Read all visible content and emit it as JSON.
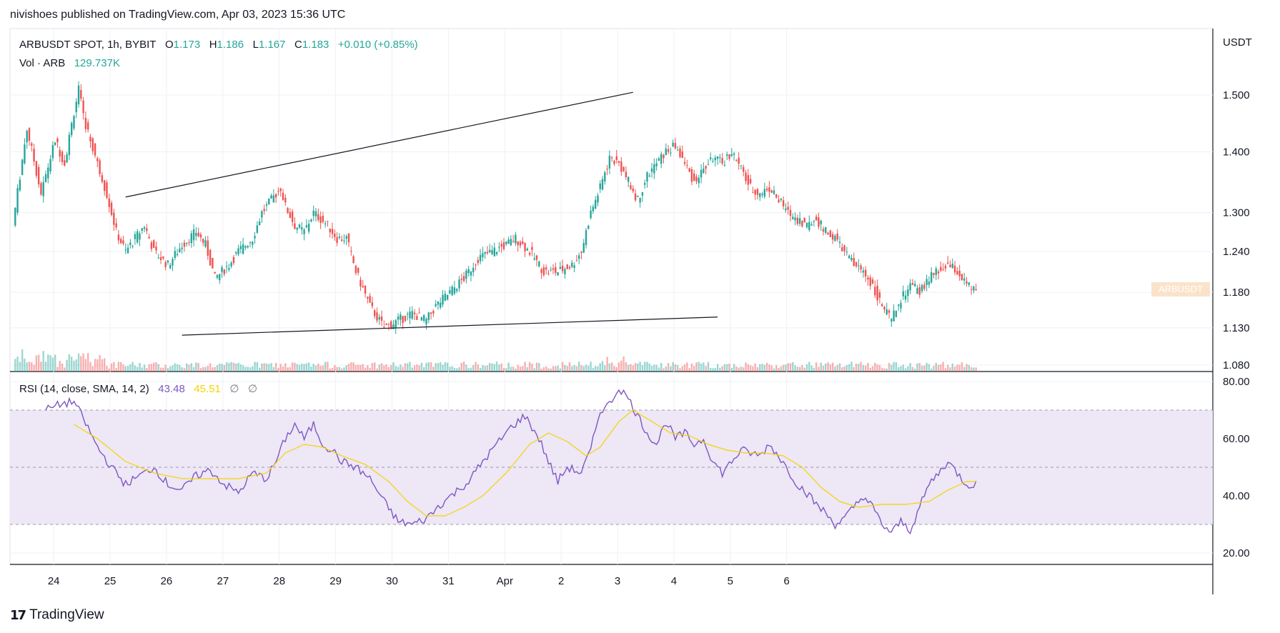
{
  "publisher": "nivishoes published on TradingView.com, Apr 03, 2023 15:36 UTC",
  "brand": {
    "logo_icon": "tradingview-logo-icon",
    "name": "TradingView"
  },
  "legend": {
    "symbol": "ARBUSDT SPOT, 1h, BYBIT",
    "o_label": "O",
    "o_value": "1.173",
    "h_label": "H",
    "h_value": "1.186",
    "l_label": "L",
    "l_value": "1.167",
    "c_label": "C",
    "c_value": "1.183",
    "change": "+0.010 (+0.85%)",
    "vol_label": "Vol · ARB",
    "vol_value": "129.737K"
  },
  "rsi_legend": {
    "label": "RSI (14, close, SMA, 14, 2)",
    "rsi_value": "43.48",
    "ma_value": "45.51",
    "n1": "∅",
    "n2": "∅"
  },
  "price_tag": "ARBUSDT",
  "colors": {
    "up": "#26a69a",
    "down": "#ef5350",
    "rsi": "#7e57c2",
    "rsi_ma": "#f5d400",
    "band": "#ede7f6",
    "grid": "#eef0f4",
    "trend": "#131722"
  },
  "chart_data": [
    {
      "type": "candlestick",
      "title": "",
      "currency_label": "USDT",
      "y_scale": "log",
      "y_ticks": [
        "1.500",
        "1.400",
        "1.300",
        "1.240",
        "1.180",
        "1.130",
        "1.080"
      ],
      "x_ticks": [
        "24",
        "25",
        "26",
        "27",
        "28",
        "29",
        "30",
        "31",
        "Apr",
        "2",
        "3",
        "4",
        "5",
        "6"
      ],
      "anchors": [
        [
          0,
          1.28
        ],
        [
          6,
          1.44
        ],
        [
          12,
          1.33
        ],
        [
          18,
          1.42
        ],
        [
          22,
          1.38
        ],
        [
          26,
          1.47
        ],
        [
          28,
          1.51
        ],
        [
          30,
          1.46
        ],
        [
          33,
          1.42
        ],
        [
          36,
          1.38
        ],
        [
          40,
          1.33
        ],
        [
          44,
          1.27
        ],
        [
          48,
          1.24
        ],
        [
          52,
          1.26
        ],
        [
          56,
          1.28
        ],
        [
          60,
          1.24
        ],
        [
          66,
          1.22
        ],
        [
          72,
          1.25
        ],
        [
          78,
          1.27
        ],
        [
          82,
          1.25
        ],
        [
          86,
          1.2
        ],
        [
          92,
          1.22
        ],
        [
          96,
          1.24
        ],
        [
          102,
          1.26
        ],
        [
          106,
          1.3
        ],
        [
          110,
          1.32
        ],
        [
          114,
          1.34
        ],
        [
          116,
          1.31
        ],
        [
          120,
          1.28
        ],
        [
          124,
          1.27
        ],
        [
          128,
          1.3
        ],
        [
          134,
          1.28
        ],
        [
          138,
          1.26
        ],
        [
          142,
          1.26
        ],
        [
          146,
          1.21
        ],
        [
          152,
          1.16
        ],
        [
          158,
          1.13
        ],
        [
          164,
          1.14
        ],
        [
          170,
          1.15
        ],
        [
          176,
          1.14
        ],
        [
          180,
          1.16
        ],
        [
          186,
          1.18
        ],
        [
          192,
          1.2
        ],
        [
          198,
          1.23
        ],
        [
          204,
          1.24
        ],
        [
          210,
          1.25
        ],
        [
          214,
          1.26
        ],
        [
          220,
          1.24
        ],
        [
          226,
          1.21
        ],
        [
          232,
          1.21
        ],
        [
          238,
          1.22
        ],
        [
          242,
          1.24
        ],
        [
          246,
          1.3
        ],
        [
          250,
          1.34
        ],
        [
          254,
          1.39
        ],
        [
          258,
          1.38
        ],
        [
          262,
          1.35
        ],
        [
          266,
          1.32
        ],
        [
          270,
          1.36
        ],
        [
          274,
          1.38
        ],
        [
          278,
          1.4
        ],
        [
          282,
          1.41
        ],
        [
          286,
          1.38
        ],
        [
          290,
          1.35
        ],
        [
          294,
          1.37
        ],
        [
          298,
          1.39
        ],
        [
          302,
          1.38
        ],
        [
          306,
          1.4
        ],
        [
          310,
          1.37
        ],
        [
          314,
          1.34
        ],
        [
          318,
          1.33
        ],
        [
          322,
          1.34
        ],
        [
          326,
          1.32
        ],
        [
          330,
          1.3
        ],
        [
          334,
          1.29
        ],
        [
          338,
          1.28
        ],
        [
          342,
          1.29
        ],
        [
          346,
          1.27
        ],
        [
          350,
          1.26
        ],
        [
          354,
          1.24
        ],
        [
          358,
          1.22
        ],
        [
          362,
          1.21
        ],
        [
          366,
          1.19
        ],
        [
          370,
          1.16
        ],
        [
          374,
          1.14
        ],
        [
          378,
          1.17
        ],
        [
          382,
          1.19
        ],
        [
          386,
          1.18
        ],
        [
          390,
          1.2
        ],
        [
          394,
          1.21
        ],
        [
          398,
          1.22
        ],
        [
          402,
          1.21
        ],
        [
          406,
          1.19
        ],
        [
          410,
          1.18
        ]
      ],
      "candle_count": 410,
      "last": {
        "open": 1.173,
        "high": 1.186,
        "low": 1.167,
        "close": 1.183
      },
      "volume_last": "129.737K",
      "trendlines": [
        {
          "from": [
            "25 18:00",
            1.325
          ],
          "to": [
            "3 18:00",
            1.505
          ]
        },
        {
          "from": [
            "26 18:00",
            1.12
          ],
          "to": [
            "5 06:00",
            1.145
          ]
        }
      ]
    },
    {
      "type": "line",
      "title": "",
      "y_ticks": [
        "80.00",
        "60.00",
        "40.00",
        "20.00"
      ],
      "ylim": [
        17,
        82
      ],
      "bands": [
        30,
        50,
        70
      ],
      "series": [
        {
          "anchors": [
            [
              14,
              70
            ],
            [
              20,
              72
            ],
            [
              26,
              73
            ],
            [
              30,
              67
            ],
            [
              36,
              57
            ],
            [
              42,
              50
            ],
            [
              48,
              44
            ],
            [
              54,
              47
            ],
            [
              60,
              50
            ],
            [
              66,
              44
            ],
            [
              72,
              42
            ],
            [
              78,
              47
            ],
            [
              84,
              49
            ],
            [
              90,
              44
            ],
            [
              96,
              41
            ],
            [
              102,
              48
            ],
            [
              108,
              46
            ],
            [
              112,
              52
            ],
            [
              116,
              60
            ],
            [
              120,
              65
            ],
            [
              124,
              60
            ],
            [
              128,
              65
            ],
            [
              132,
              58
            ],
            [
              136,
              56
            ],
            [
              140,
              52
            ],
            [
              146,
              50
            ],
            [
              152,
              46
            ],
            [
              158,
              38
            ],
            [
              164,
              31
            ],
            [
              170,
              30
            ],
            [
              176,
              32
            ],
            [
              182,
              37
            ],
            [
              188,
              41
            ],
            [
              194,
              45
            ],
            [
              200,
              52
            ],
            [
              206,
              58
            ],
            [
              212,
              64
            ],
            [
              218,
              68
            ],
            [
              224,
              60
            ],
            [
              228,
              52
            ],
            [
              232,
              45
            ],
            [
              236,
              50
            ],
            [
              242,
              48
            ],
            [
              246,
              56
            ],
            [
              250,
              70
            ],
            [
              254,
              72
            ],
            [
              258,
              78
            ],
            [
              262,
              74
            ],
            [
              266,
              68
            ],
            [
              270,
              62
            ],
            [
              274,
              58
            ],
            [
              278,
              66
            ],
            [
              282,
              60
            ],
            [
              286,
              62
            ],
            [
              290,
              58
            ],
            [
              294,
              60
            ],
            [
              298,
              52
            ],
            [
              302,
              48
            ],
            [
              306,
              52
            ],
            [
              310,
              56
            ],
            [
              314,
              55
            ],
            [
              318,
              54
            ],
            [
              322,
              58
            ],
            [
              326,
              54
            ],
            [
              330,
              49
            ],
            [
              334,
              44
            ],
            [
              338,
              41
            ],
            [
              342,
              37
            ],
            [
              346,
              34
            ],
            [
              350,
              30
            ],
            [
              354,
              32
            ],
            [
              358,
              36
            ],
            [
              362,
              40
            ],
            [
              366,
              36
            ],
            [
              370,
              30
            ],
            [
              374,
              27
            ],
            [
              378,
              31
            ],
            [
              382,
              28
            ],
            [
              386,
              36
            ],
            [
              390,
              44
            ],
            [
              394,
              48
            ],
            [
              398,
              52
            ],
            [
              402,
              48
            ],
            [
              406,
              44
            ],
            [
              410,
              44
            ]
          ]
        },
        {
          "anchors": [
            [
              26,
              65
            ],
            [
              36,
              60
            ],
            [
              48,
              52
            ],
            [
              60,
              48
            ],
            [
              72,
              46
            ],
            [
              84,
              46
            ],
            [
              96,
              46
            ],
            [
              108,
              48
            ],
            [
              116,
              55
            ],
            [
              124,
              58
            ],
            [
              132,
              57
            ],
            [
              140,
              54
            ],
            [
              150,
              51
            ],
            [
              160,
              45
            ],
            [
              168,
              38
            ],
            [
              176,
              33
            ],
            [
              184,
              33
            ],
            [
              192,
              36
            ],
            [
              200,
              40
            ],
            [
              210,
              48
            ],
            [
              220,
              58
            ],
            [
              228,
              62
            ],
            [
              236,
              59
            ],
            [
              244,
              54
            ],
            [
              250,
              57
            ],
            [
              258,
              66
            ],
            [
              264,
              70
            ],
            [
              272,
              66
            ],
            [
              280,
              62
            ],
            [
              288,
              61
            ],
            [
              296,
              58
            ],
            [
              304,
              56
            ],
            [
              312,
              55
            ],
            [
              320,
              55
            ],
            [
              328,
              54
            ],
            [
              336,
              50
            ],
            [
              344,
              43
            ],
            [
              352,
              38
            ],
            [
              360,
              36
            ],
            [
              370,
              37
            ],
            [
              380,
              37
            ],
            [
              390,
              38
            ],
            [
              398,
              42
            ],
            [
              406,
              45
            ],
            [
              410,
              45
            ]
          ]
        }
      ],
      "rsi_value": 43.48,
      "ma_value": 45.51
    }
  ]
}
